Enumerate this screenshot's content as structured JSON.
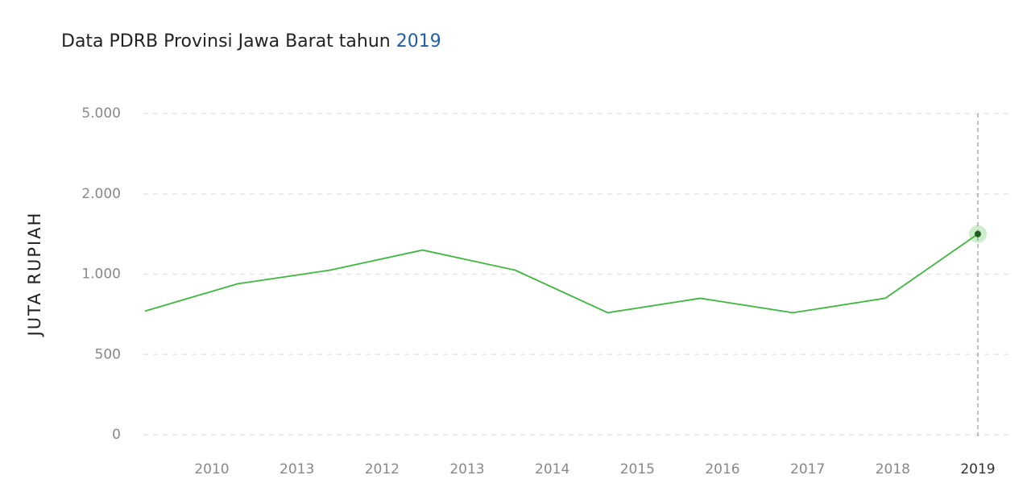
{
  "chart_data": {
    "type": "line",
    "title": "Data PDRB Provinsi Jawa Barat tahun",
    "title_highlight": "2019",
    "ylabel": "JUTA RUPIAH",
    "categories": [
      "2010",
      "2013",
      "2012",
      "2013",
      "2014",
      "2015",
      "2016",
      "2017",
      "2018",
      "2019"
    ],
    "series": [
      {
        "name": "PDRB",
        "color": "#3db83d",
        "values": [
          770,
          940,
          1050,
          1300,
          1050,
          760,
          850,
          760,
          850,
          1500
        ]
      }
    ],
    "ylim": [
      0,
      5000
    ],
    "yticks": [
      0,
      500,
      {
        "value": 1000,
        "label": "1.000"
      },
      {
        "value": 2000,
        "label": "2.000"
      },
      {
        "value": 5000,
        "label": "5.000"
      }
    ],
    "grid": true
  }
}
